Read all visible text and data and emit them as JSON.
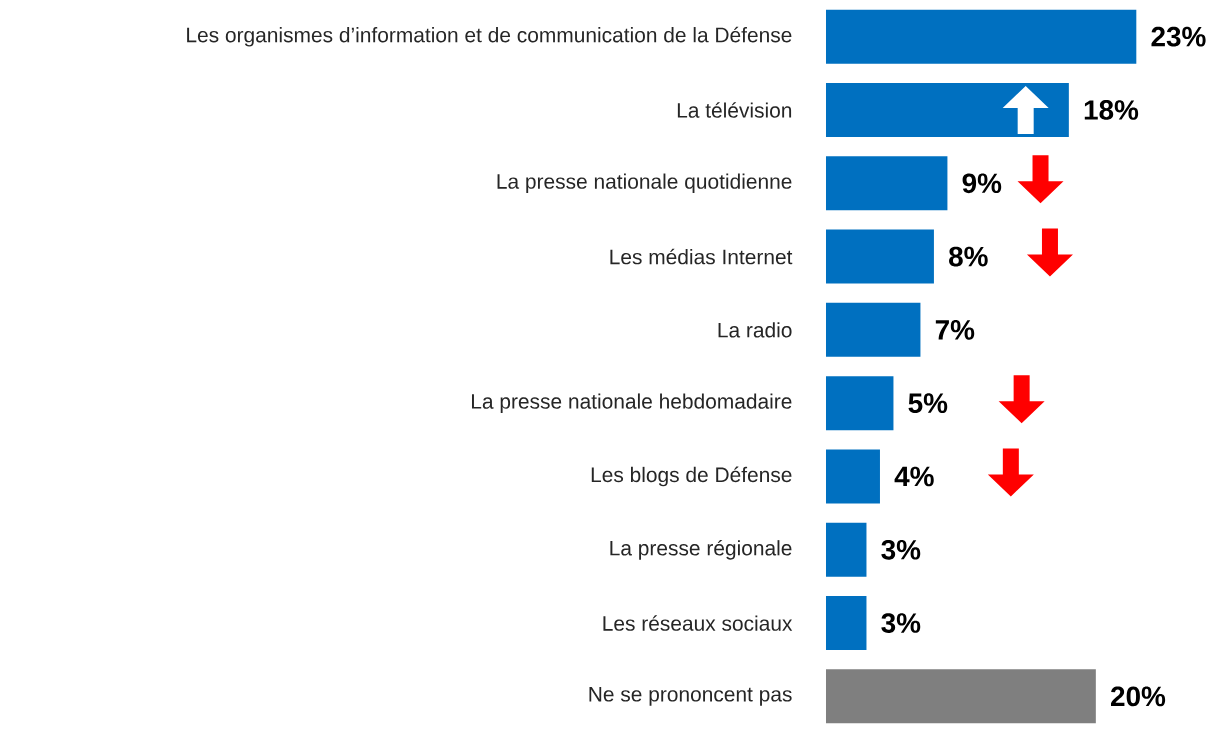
{
  "chart_data": {
    "type": "bar",
    "orientation": "horizontal",
    "tick_labels": "y",
    "categories": [
      "Les organismes d’information et de communication de la Défense",
      "La télévision",
      "La presse nationale quotidienne",
      "Les médias Internet",
      "La radio",
      "La presse nationale hebdomadaire",
      "Les blogs de Défense",
      "La presse régionale",
      "Les réseaux sociaux",
      "Ne se prononcent pas"
    ],
    "values": [
      23,
      18,
      9,
      8,
      7,
      5,
      4,
      3,
      3,
      20
    ],
    "colors": [
      "#0070c0",
      "#0070c0",
      "#0070c0",
      "#0070c0",
      "#0070c0",
      "#0070c0",
      "#0070c0",
      "#0070c0",
      "#0070c0",
      "#7f7f7f"
    ],
    "value_labels": [
      "23%",
      "18%",
      "9%",
      "8%",
      "7%",
      "5%",
      "4%",
      "3%",
      "3%",
      "20%"
    ]
  }
}
